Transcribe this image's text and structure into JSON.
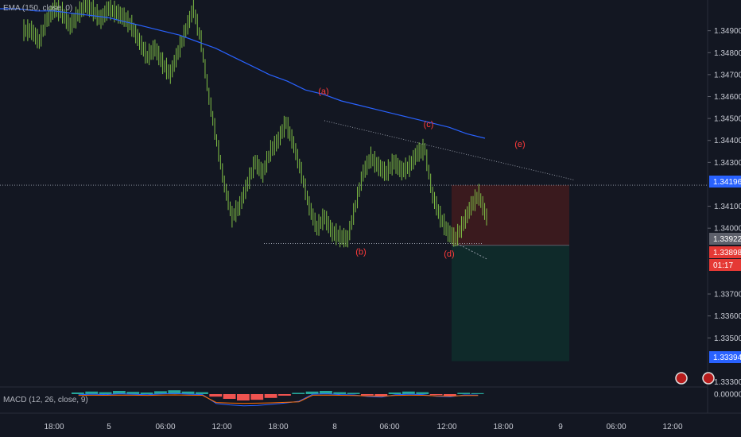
{
  "indicators": {
    "ema_label": "EMA (150, close, 0)",
    "macd_label": "MACD (12, 26, close, 9)"
  },
  "colors": {
    "background": "#131722",
    "candle": "#7fbf45",
    "ema": "#2962ff",
    "wave_label": "#ff3b3b",
    "stop_zone": "#3a1a1e",
    "target_zone": "#0f2a2a",
    "price_tag_blue": "#2962ff",
    "price_tag_red": "#e53935",
    "price_tag_gray": "#5d606b",
    "macd_pos": "#26a69a",
    "macd_neg": "#ef5350",
    "macd_line": "#2962ff",
    "signal_line": "#ff6d00"
  },
  "chart_data": {
    "type": "line",
    "series_style": "ohlc-bars",
    "ylim": [
      1.3328,
      1.3504
    ],
    "y_ticks": [
      "1.34900",
      "1.34800",
      "1.34700",
      "1.34600",
      "1.34500",
      "1.34400",
      "1.34300",
      "1.34100",
      "1.34000",
      "1.33700",
      "1.33600",
      "1.33500",
      "1.33300"
    ],
    "x_ticks": [
      "18:00",
      "5",
      "06:00",
      "12:00",
      "18:00",
      "8",
      "06:00",
      "12:00",
      "18:00",
      "9",
      "06:00",
      "12:00"
    ],
    "price_tags": [
      {
        "label": "1.34196",
        "value": 1.34196,
        "color": "blue"
      },
      {
        "label": "1.33922",
        "value": 1.33922,
        "color": "gray"
      },
      {
        "label": "1.33898",
        "value": 1.33898,
        "color": "red"
      },
      {
        "label": "01:17",
        "value": 1.3387,
        "color": "red"
      },
      {
        "label": "1.33394",
        "value": 1.33394,
        "color": "blue"
      }
    ],
    "price_series": [
      1.349,
      1.3485,
      1.3495,
      1.35,
      1.3498,
      1.3492,
      1.3497,
      1.3502,
      1.3499,
      1.3495,
      1.35,
      1.3498,
      1.3496,
      1.3492,
      1.3485,
      1.3478,
      1.3482,
      1.3475,
      1.347,
      1.348,
      1.349,
      1.35,
      1.3485,
      1.346,
      1.344,
      1.342,
      1.3405,
      1.341,
      1.342,
      1.343,
      1.3425,
      1.3435,
      1.344,
      1.3448,
      1.3438,
      1.3425,
      1.341,
      1.34,
      1.3405,
      1.3398,
      1.3396,
      1.3395,
      1.341,
      1.3425,
      1.3432,
      1.3428,
      1.3425,
      1.343,
      1.3426,
      1.3428,
      1.3434,
      1.3436,
      1.3415,
      1.3405,
      1.3398,
      1.3395,
      1.3402,
      1.341,
      1.3415,
      1.3405,
      1.3395
    ],
    "ema_series": [
      1.35,
      1.35,
      1.3499,
      1.3499,
      1.3498,
      1.3497,
      1.3496,
      1.3494,
      1.3492,
      1.349,
      1.3488,
      1.3485,
      1.3482,
      1.3478,
      1.3474,
      1.347,
      1.3467,
      1.3463,
      1.3461,
      1.3458,
      1.3456,
      1.3454,
      1.3452,
      1.345,
      1.3448,
      1.3446,
      1.3443,
      1.3441
    ],
    "wave_labels": [
      {
        "label": "(a)",
        "value": 1.3461
      },
      {
        "label": "(b)",
        "value": 1.3388
      },
      {
        "label": "(c)",
        "value": 1.3446
      },
      {
        "label": "(d)",
        "value": 1.3387
      },
      {
        "label": "(e)",
        "value": 1.3437
      }
    ],
    "triangle": {
      "upper": [
        1.3449,
        1.3422
      ],
      "lower": [
        1.3393,
        1.3393
      ]
    },
    "position": {
      "stop_zone": [
        1.33922,
        1.34196
      ],
      "target_zone": [
        1.33394,
        1.33922
      ]
    },
    "macd": {
      "ylim": [
        -0.0006,
        0.0002
      ],
      "y_ticks": [
        "0.00000"
      ],
      "histogram": [
        5e-05,
        8e-05,
        6e-05,
        0.0001,
        7e-05,
        5e-05,
        9e-05,
        0.00012,
        8e-05,
        6e-05,
        -8e-05,
        -0.00015,
        -0.0002,
        -0.00018,
        -0.00012,
        -5e-05,
        4e-05,
        8e-05,
        0.0001,
        6e-05,
        4e-05,
        -4e-05,
        -7e-05,
        5e-05,
        8e-05,
        6e-05,
        -3e-05,
        -6e-05,
        4e-05,
        3e-05
      ]
    }
  }
}
